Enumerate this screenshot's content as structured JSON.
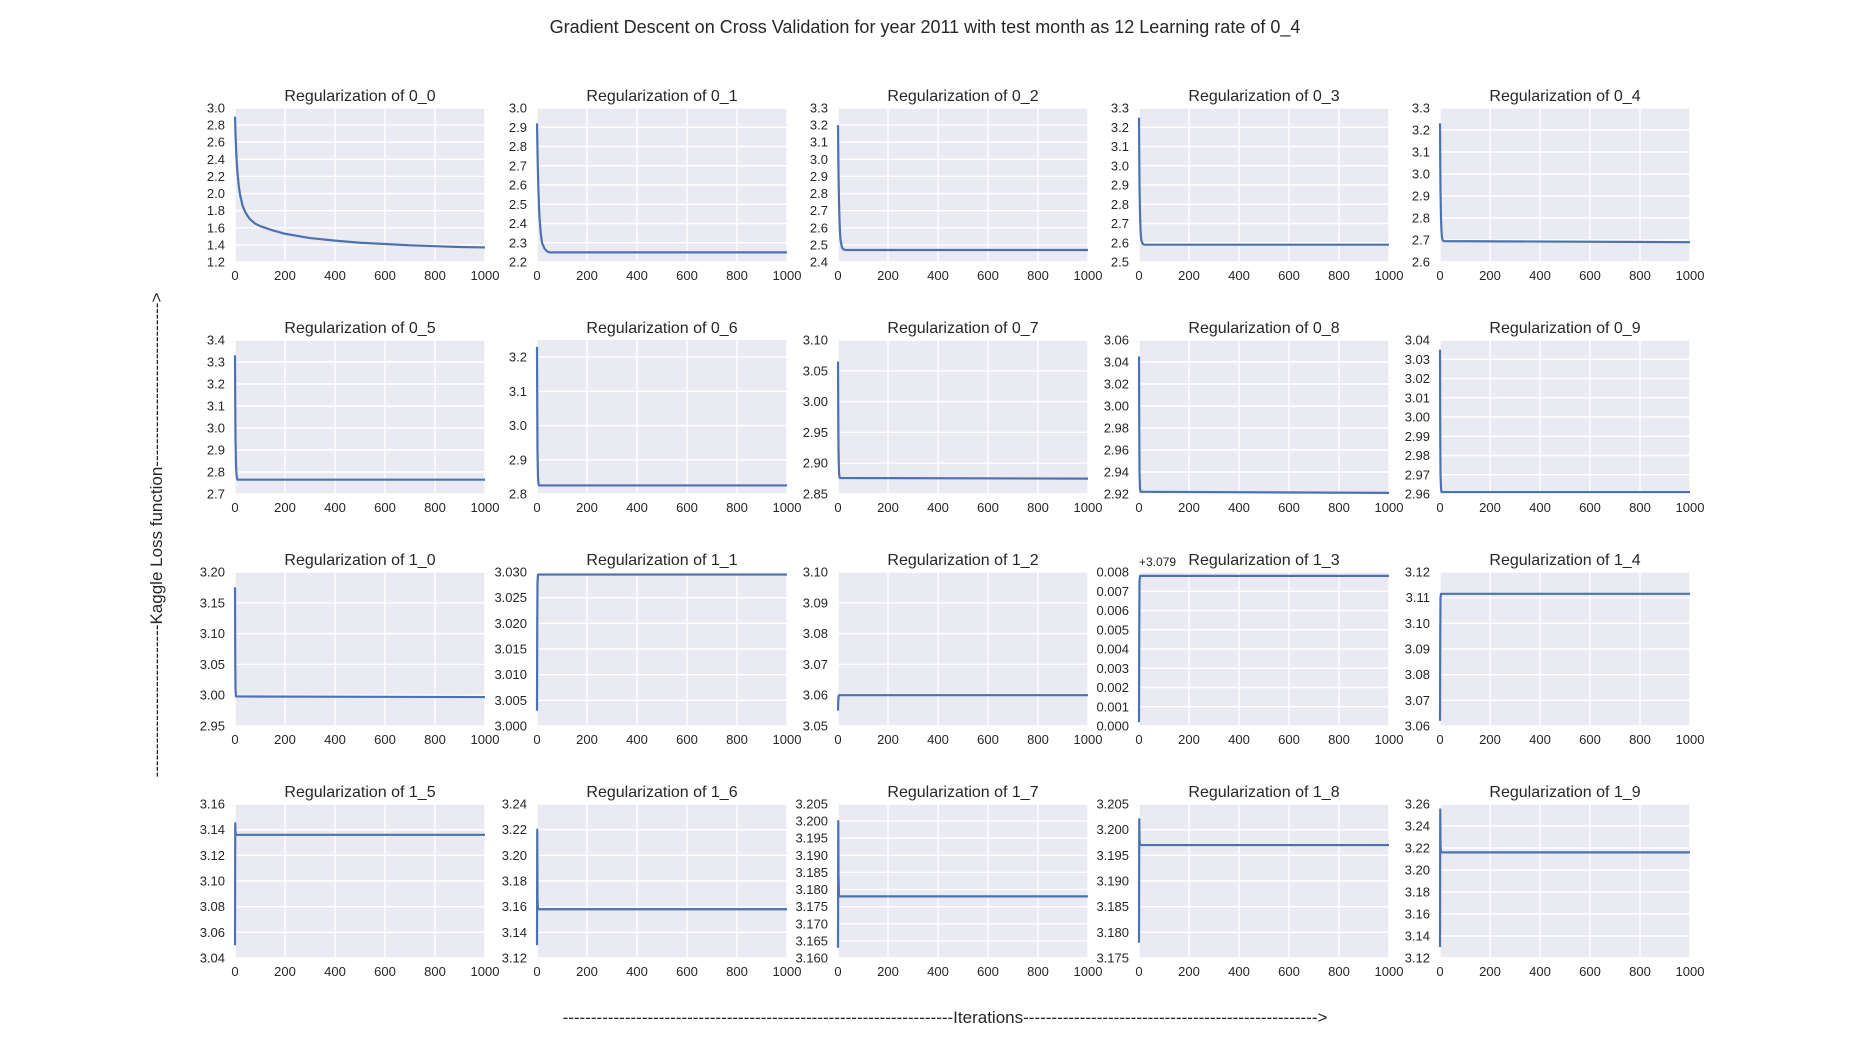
{
  "figure": {
    "title": "Gradient Descent on Cross Validation for year  2011 with test month as 12 Learning rate of 0_4",
    "xlabel": "---------------------------------------------------------------------Iterations---------------------------------------------------->",
    "ylabel": "---------------------------Kaggle Loss function----------------------------->"
  },
  "chart_data": [
    {
      "type": "line",
      "title": "Regularization of 0_0",
      "x_ticks": [
        0,
        200,
        400,
        600,
        800,
        1000
      ],
      "xlim": [
        0,
        1000
      ],
      "y_ticks": [
        "1.2",
        "1.4",
        "1.6",
        "1.8",
        "2.0",
        "2.2",
        "2.4",
        "2.6",
        "2.8",
        "3.0"
      ],
      "ylim": [
        1.2,
        3.0
      ],
      "grid": true,
      "series": [
        {
          "x": [
            0,
            1,
            2,
            4,
            6,
            8,
            10,
            15,
            20,
            30,
            40,
            50,
            60,
            80,
            100,
            150,
            200,
            300,
            400,
            500,
            600,
            700,
            800,
            900,
            1000
          ],
          "y": [
            2.9,
            2.8,
            2.7,
            2.55,
            2.42,
            2.32,
            2.24,
            2.09,
            1.99,
            1.86,
            1.79,
            1.74,
            1.7,
            1.65,
            1.62,
            1.57,
            1.53,
            1.48,
            1.45,
            1.425,
            1.41,
            1.395,
            1.385,
            1.375,
            1.37
          ]
        }
      ]
    },
    {
      "type": "line",
      "title": "Regularization of 0_1",
      "x_ticks": [
        0,
        200,
        400,
        600,
        800,
        1000
      ],
      "xlim": [
        0,
        1000
      ],
      "y_ticks": [
        "2.2",
        "2.3",
        "2.4",
        "2.5",
        "2.6",
        "2.7",
        "2.8",
        "2.9",
        "3.0"
      ],
      "ylim": [
        2.2,
        3.0
      ],
      "grid": true,
      "series": [
        {
          "x": [
            0,
            1,
            2,
            4,
            6,
            8,
            10,
            15,
            20,
            30,
            40,
            50,
            60,
            80,
            100,
            1000
          ],
          "y": [
            2.92,
            2.85,
            2.77,
            2.65,
            2.56,
            2.49,
            2.43,
            2.35,
            2.3,
            2.27,
            2.255,
            2.25,
            2.25,
            2.25,
            2.25,
            2.25
          ]
        }
      ]
    },
    {
      "type": "line",
      "title": "Regularization of 0_2",
      "x_ticks": [
        0,
        200,
        400,
        600,
        800,
        1000
      ],
      "xlim": [
        0,
        1000
      ],
      "y_ticks": [
        "2.4",
        "2.5",
        "2.6",
        "2.7",
        "2.8",
        "2.9",
        "3.0",
        "3.1",
        "3.2",
        "3.3"
      ],
      "ylim": [
        2.4,
        3.3
      ],
      "grid": true,
      "series": [
        {
          "x": [
            0,
            1,
            2,
            4,
            6,
            8,
            10,
            15,
            20,
            30,
            40,
            1000
          ],
          "y": [
            3.2,
            3.05,
            2.92,
            2.75,
            2.64,
            2.57,
            2.53,
            2.49,
            2.475,
            2.47,
            2.47,
            2.47
          ]
        }
      ]
    },
    {
      "type": "line",
      "title": "Regularization of 0_3",
      "x_ticks": [
        0,
        200,
        400,
        600,
        800,
        1000
      ],
      "xlim": [
        0,
        1000
      ],
      "y_ticks": [
        "2.5",
        "2.6",
        "2.7",
        "2.8",
        "2.9",
        "3.0",
        "3.1",
        "3.2",
        "3.3"
      ],
      "ylim": [
        2.5,
        3.3
      ],
      "grid": true,
      "series": [
        {
          "x": [
            0,
            1,
            2,
            4,
            6,
            8,
            10,
            15,
            20,
            1000
          ],
          "y": [
            3.25,
            3.05,
            2.9,
            2.75,
            2.67,
            2.63,
            2.61,
            2.595,
            2.59,
            2.59
          ]
        }
      ]
    },
    {
      "type": "line",
      "title": "Regularization of 0_4",
      "x_ticks": [
        0,
        200,
        400,
        600,
        800,
        1000
      ],
      "xlim": [
        0,
        1000
      ],
      "y_ticks": [
        "2.6",
        "2.7",
        "2.8",
        "2.9",
        "3.0",
        "3.1",
        "3.2",
        "3.3"
      ],
      "ylim": [
        2.6,
        3.3
      ],
      "grid": true,
      "series": [
        {
          "x": [
            0,
            1,
            2,
            4,
            6,
            8,
            10,
            15,
            1000
          ],
          "y": [
            3.23,
            3.05,
            2.92,
            2.8,
            2.74,
            2.71,
            2.7,
            2.695,
            2.69
          ]
        }
      ]
    },
    {
      "type": "line",
      "title": "Regularization of 0_5",
      "x_ticks": [
        0,
        200,
        400,
        600,
        800,
        1000
      ],
      "xlim": [
        0,
        1000
      ],
      "y_ticks": [
        "2.7",
        "2.8",
        "2.9",
        "3.0",
        "3.1",
        "3.2",
        "3.3",
        "3.4"
      ],
      "ylim": [
        2.7,
        3.4
      ],
      "grid": true,
      "series": [
        {
          "x": [
            0,
            1,
            2,
            4,
            6,
            8,
            10,
            1000
          ],
          "y": [
            3.33,
            3.1,
            2.95,
            2.83,
            2.79,
            2.77,
            2.765,
            2.765
          ]
        }
      ]
    },
    {
      "type": "line",
      "title": "Regularization of 0_6",
      "x_ticks": [
        0,
        200,
        400,
        600,
        800,
        1000
      ],
      "xlim": [
        0,
        1000
      ],
      "y_ticks": [
        "2.8",
        "2.9",
        "3.0",
        "3.1",
        "3.2"
      ],
      "ylim": [
        2.8,
        3.25
      ],
      "grid": true,
      "series": [
        {
          "x": [
            0,
            1,
            2,
            4,
            6,
            8,
            1000
          ],
          "y": [
            3.23,
            3.05,
            2.92,
            2.85,
            2.83,
            2.825,
            2.825
          ]
        }
      ]
    },
    {
      "type": "line",
      "title": "Regularization of 0_7",
      "x_ticks": [
        0,
        200,
        400,
        600,
        800,
        1000
      ],
      "xlim": [
        0,
        1000
      ],
      "y_ticks": [
        "2.85",
        "2.90",
        "2.95",
        "3.00",
        "3.05",
        "3.10"
      ],
      "ylim": [
        2.85,
        3.1
      ],
      "grid": true,
      "series": [
        {
          "x": [
            0,
            1,
            2,
            4,
            6,
            8,
            1000
          ],
          "y": [
            3.065,
            2.98,
            2.92,
            2.885,
            2.877,
            2.876,
            2.875
          ]
        }
      ]
    },
    {
      "type": "line",
      "title": "Regularization of 0_8",
      "x_ticks": [
        0,
        200,
        400,
        600,
        800,
        1000
      ],
      "xlim": [
        0,
        1000
      ],
      "y_ticks": [
        "2.92",
        "2.94",
        "2.96",
        "2.98",
        "3.00",
        "3.02",
        "3.04",
        "3.06"
      ],
      "ylim": [
        2.92,
        3.06
      ],
      "grid": true,
      "series": [
        {
          "x": [
            0,
            1,
            2,
            4,
            6,
            1000
          ],
          "y": [
            3.045,
            2.98,
            2.94,
            2.925,
            2.922,
            2.921
          ]
        }
      ]
    },
    {
      "type": "line",
      "title": "Regularization of 0_9",
      "x_ticks": [
        0,
        200,
        400,
        600,
        800,
        1000
      ],
      "xlim": [
        0,
        1000
      ],
      "y_ticks": [
        "2.96",
        "2.97",
        "2.98",
        "2.99",
        "3.00",
        "3.01",
        "3.02",
        "3.03",
        "3.04"
      ],
      "ylim": [
        2.96,
        3.04
      ],
      "grid": true,
      "series": [
        {
          "x": [
            0,
            1,
            2,
            4,
            6,
            1000
          ],
          "y": [
            3.035,
            2.99,
            2.97,
            2.963,
            2.961,
            2.961
          ]
        }
      ]
    },
    {
      "type": "line",
      "title": "Regularization of 1_0",
      "x_ticks": [
        0,
        200,
        400,
        600,
        800,
        1000
      ],
      "xlim": [
        0,
        1000
      ],
      "y_ticks": [
        "2.95",
        "3.00",
        "3.05",
        "3.10",
        "3.15",
        "3.20"
      ],
      "ylim": [
        2.95,
        3.2
      ],
      "grid": true,
      "series": [
        {
          "x": [
            0,
            1,
            2,
            4,
            1000
          ],
          "y": [
            3.175,
            3.06,
            3.01,
            2.998,
            2.997
          ]
        }
      ]
    },
    {
      "type": "line",
      "title": "Regularization of 1_1",
      "x_ticks": [
        0,
        200,
        400,
        600,
        800,
        1000
      ],
      "xlim": [
        0,
        1000
      ],
      "y_ticks": [
        "3.000",
        "3.005",
        "3.010",
        "3.015",
        "3.020",
        "3.025",
        "3.030"
      ],
      "ylim": [
        3.0,
        3.03
      ],
      "grid": true,
      "series": [
        {
          "x": [
            0,
            1,
            2,
            4,
            1000
          ],
          "y": [
            3.003,
            3.02,
            3.028,
            3.0295,
            3.0295
          ]
        }
      ]
    },
    {
      "type": "line",
      "title": "Regularization of 1_2",
      "x_ticks": [
        0,
        200,
        400,
        600,
        800,
        1000
      ],
      "xlim": [
        0,
        1000
      ],
      "y_ticks": [
        "3.05",
        "3.06",
        "3.07",
        "3.08",
        "3.09",
        "3.10"
      ],
      "ylim": [
        3.05,
        3.1
      ],
      "grid": true,
      "series": [
        {
          "x": [
            0,
            1,
            2,
            4,
            1000
          ],
          "y": [
            3.055,
            3.058,
            3.0595,
            3.06,
            3.06
          ]
        }
      ]
    },
    {
      "type": "line",
      "title": "Regularization of 1_3",
      "offset_text": "+3.079",
      "x_ticks": [
        0,
        200,
        400,
        600,
        800,
        1000
      ],
      "xlim": [
        0,
        1000
      ],
      "y_ticks": [
        "0.000",
        "0.001",
        "0.002",
        "0.003",
        "0.004",
        "0.005",
        "0.006",
        "0.007",
        "0.008"
      ],
      "ylim": [
        0.0,
        0.008
      ],
      "grid": true,
      "series": [
        {
          "x": [
            0,
            1,
            2,
            4,
            1000
          ],
          "y": [
            0.0002,
            0.005,
            0.0075,
            0.0078,
            0.0078
          ]
        }
      ]
    },
    {
      "type": "line",
      "title": "Regularization of 1_4",
      "x_ticks": [
        0,
        200,
        400,
        600,
        800,
        1000
      ],
      "xlim": [
        0,
        1000
      ],
      "y_ticks": [
        "3.06",
        "3.07",
        "3.08",
        "3.09",
        "3.10",
        "3.11",
        "3.12"
      ],
      "ylim": [
        3.06,
        3.12
      ],
      "grid": true,
      "series": [
        {
          "x": [
            0,
            1,
            2,
            4,
            1000
          ],
          "y": [
            3.062,
            3.095,
            3.11,
            3.1115,
            3.1115
          ]
        }
      ]
    },
    {
      "type": "line",
      "title": "Regularization of 1_5",
      "x_ticks": [
        0,
        200,
        400,
        600,
        800,
        1000
      ],
      "xlim": [
        0,
        1000
      ],
      "y_ticks": [
        "3.04",
        "3.06",
        "3.08",
        "3.10",
        "3.12",
        "3.14",
        "3.16"
      ],
      "ylim": [
        3.04,
        3.16
      ],
      "grid": true,
      "series": [
        {
          "x": [
            0,
            1,
            2,
            4,
            1000
          ],
          "y": [
            3.05,
            3.145,
            3.138,
            3.136,
            3.136
          ]
        }
      ]
    },
    {
      "type": "line",
      "title": "Regularization of 1_6",
      "x_ticks": [
        0,
        200,
        400,
        600,
        800,
        1000
      ],
      "xlim": [
        0,
        1000
      ],
      "y_ticks": [
        "3.12",
        "3.14",
        "3.16",
        "3.18",
        "3.20",
        "3.22",
        "3.24"
      ],
      "ylim": [
        3.12,
        3.24
      ],
      "grid": true,
      "series": [
        {
          "x": [
            0,
            1,
            2,
            4,
            1000
          ],
          "y": [
            3.13,
            3.22,
            3.165,
            3.158,
            3.158
          ]
        }
      ]
    },
    {
      "type": "line",
      "title": "Regularization of 1_7",
      "x_ticks": [
        0,
        200,
        400,
        600,
        800,
        1000
      ],
      "xlim": [
        0,
        1000
      ],
      "y_ticks": [
        "3.160",
        "3.165",
        "3.170",
        "3.175",
        "3.180",
        "3.185",
        "3.190",
        "3.195",
        "3.200",
        "3.205"
      ],
      "ylim": [
        3.16,
        3.205
      ],
      "grid": true,
      "series": [
        {
          "x": [
            0,
            1,
            2,
            4,
            1000
          ],
          "y": [
            3.163,
            3.2,
            3.184,
            3.178,
            3.178
          ]
        }
      ]
    },
    {
      "type": "line",
      "title": "Regularization of 1_8",
      "x_ticks": [
        0,
        200,
        400,
        600,
        800,
        1000
      ],
      "xlim": [
        0,
        1000
      ],
      "y_ticks": [
        "3.175",
        "3.180",
        "3.185",
        "3.190",
        "3.195",
        "3.200",
        "3.205"
      ],
      "ylim": [
        3.175,
        3.205
      ],
      "grid": true,
      "series": [
        {
          "x": [
            0,
            1,
            2,
            4,
            1000
          ],
          "y": [
            3.178,
            3.202,
            3.198,
            3.197,
            3.197
          ]
        }
      ]
    },
    {
      "type": "line",
      "title": "Regularization of 1_9",
      "x_ticks": [
        0,
        200,
        400,
        600,
        800,
        1000
      ],
      "xlim": [
        0,
        1000
      ],
      "y_ticks": [
        "3.12",
        "3.14",
        "3.16",
        "3.18",
        "3.20",
        "3.22",
        "3.24",
        "3.26"
      ],
      "ylim": [
        3.12,
        3.26
      ],
      "grid": true,
      "series": [
        {
          "x": [
            0,
            1,
            2,
            4,
            1000
          ],
          "y": [
            3.13,
            3.255,
            3.222,
            3.216,
            3.216
          ]
        }
      ]
    }
  ]
}
